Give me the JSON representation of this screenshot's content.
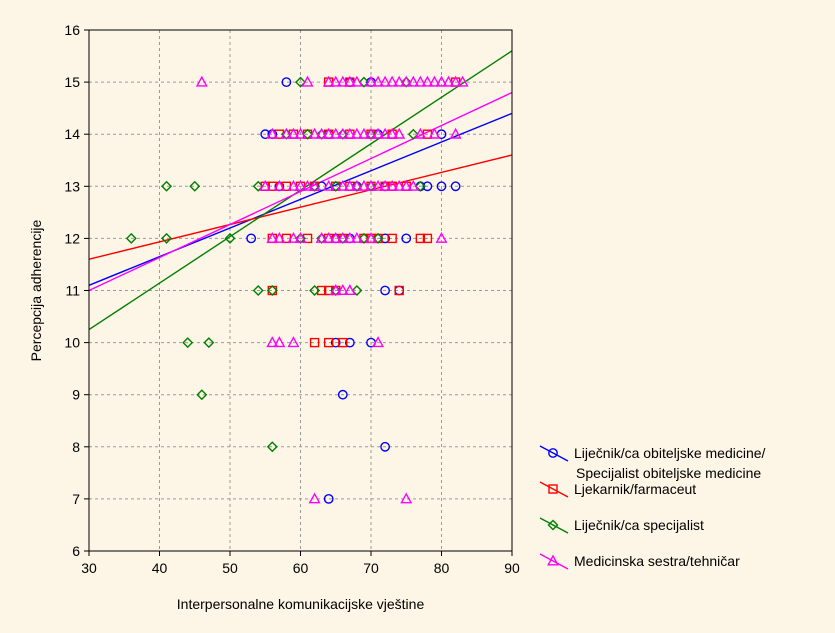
{
  "chart_data": {
    "type": "scatter",
    "title": "",
    "xlabel": "Interpersonalne komunikacijske vještine",
    "ylabel": "Percepcija adherencije",
    "xlim": [
      30,
      90
    ],
    "ylim": [
      6,
      16
    ],
    "xticks": [
      30,
      40,
      50,
      60,
      70,
      80,
      90
    ],
    "yticks": [
      6,
      7,
      8,
      9,
      10,
      11,
      12,
      13,
      14,
      15,
      16
    ],
    "grid": "dashed",
    "legend_position": "right",
    "series": [
      {
        "name": "Liječnik/ca obiteljske medicine/\nSpecijalist obiteljske medicine",
        "color": "#0000ff",
        "marker": "circle",
        "fit_line": [
          [
            30,
            11.1
          ],
          [
            90,
            14.4
          ]
        ],
        "points": [
          [
            58,
            15
          ],
          [
            67,
            15
          ],
          [
            70,
            15
          ],
          [
            55,
            14
          ],
          [
            56,
            14
          ],
          [
            64,
            14
          ],
          [
            71,
            14
          ],
          [
            80,
            14
          ],
          [
            57,
            13
          ],
          [
            63,
            13
          ],
          [
            68,
            13
          ],
          [
            72,
            13
          ],
          [
            77,
            13
          ],
          [
            78,
            13
          ],
          [
            80,
            13
          ],
          [
            82,
            13
          ],
          [
            53,
            12
          ],
          [
            65,
            12
          ],
          [
            67,
            12
          ],
          [
            72,
            12
          ],
          [
            75,
            12
          ],
          [
            72,
            11
          ],
          [
            74,
            11
          ],
          [
            65,
            10
          ],
          [
            67,
            10
          ],
          [
            70,
            10
          ],
          [
            66,
            9
          ],
          [
            72,
            8
          ],
          [
            64,
            7
          ]
        ]
      },
      {
        "name": "Ljekarnik/farmaceut",
        "color": "#ff0000",
        "marker": "square",
        "fit_line": [
          [
            30,
            11.6
          ],
          [
            90,
            13.6
          ]
        ],
        "points": [
          [
            64,
            15
          ],
          [
            67,
            15
          ],
          [
            82,
            15
          ],
          [
            57,
            14
          ],
          [
            59,
            14
          ],
          [
            61,
            14
          ],
          [
            64,
            14
          ],
          [
            67,
            14
          ],
          [
            70,
            14
          ],
          [
            73,
            14
          ],
          [
            78,
            14
          ],
          [
            55,
            13
          ],
          [
            56,
            13
          ],
          [
            58,
            13
          ],
          [
            60,
            13
          ],
          [
            62,
            13
          ],
          [
            65,
            13
          ],
          [
            67,
            13
          ],
          [
            70,
            13
          ],
          [
            72,
            13
          ],
          [
            73,
            13
          ],
          [
            75,
            13
          ],
          [
            56,
            12
          ],
          [
            58,
            12
          ],
          [
            61,
            12
          ],
          [
            64,
            12
          ],
          [
            66,
            12
          ],
          [
            69,
            12
          ],
          [
            70,
            12
          ],
          [
            71,
            12
          ],
          [
            73,
            12
          ],
          [
            77,
            12
          ],
          [
            78,
            12
          ],
          [
            56,
            11
          ],
          [
            63,
            11
          ],
          [
            64,
            11
          ],
          [
            65,
            11
          ],
          [
            74,
            11
          ],
          [
            62,
            10
          ],
          [
            64,
            10
          ],
          [
            66,
            10
          ]
        ]
      },
      {
        "name": "Liječnik/ca specijalist",
        "color": "#008000",
        "marker": "diamond",
        "fit_line": [
          [
            30,
            10.25
          ],
          [
            90,
            15.6
          ]
        ],
        "points": [
          [
            60,
            15
          ],
          [
            69,
            15
          ],
          [
            75,
            15
          ],
          [
            58,
            14
          ],
          [
            61,
            14
          ],
          [
            63,
            14
          ],
          [
            66,
            14
          ],
          [
            70,
            14
          ],
          [
            76,
            14
          ],
          [
            41,
            13
          ],
          [
            45,
            13
          ],
          [
            54,
            13
          ],
          [
            62,
            13
          ],
          [
            65,
            13
          ],
          [
            68,
            13
          ],
          [
            70,
            13
          ],
          [
            77,
            13
          ],
          [
            36,
            12
          ],
          [
            41,
            12
          ],
          [
            50,
            12
          ],
          [
            60,
            12
          ],
          [
            63,
            12
          ],
          [
            66,
            12
          ],
          [
            69,
            12
          ],
          [
            71,
            12
          ],
          [
            54,
            11
          ],
          [
            56,
            11
          ],
          [
            62,
            11
          ],
          [
            65,
            11
          ],
          [
            68,
            11
          ],
          [
            44,
            10
          ],
          [
            47,
            10
          ],
          [
            46,
            9
          ],
          [
            56,
            8
          ]
        ]
      },
      {
        "name": "Medicinska sestra/tehničar",
        "color": "#ff00ff",
        "marker": "triangle",
        "fit_line": [
          [
            30,
            11.0
          ],
          [
            90,
            14.8
          ]
        ],
        "points": [
          [
            46,
            15
          ],
          [
            61,
            15
          ],
          [
            64,
            15
          ],
          [
            65,
            15
          ],
          [
            66,
            15
          ],
          [
            67,
            15
          ],
          [
            68,
            15
          ],
          [
            70,
            15
          ],
          [
            71,
            15
          ],
          [
            72,
            15
          ],
          [
            73,
            15
          ],
          [
            74,
            15
          ],
          [
            75,
            15
          ],
          [
            76,
            15
          ],
          [
            77,
            15
          ],
          [
            78,
            15
          ],
          [
            79,
            15
          ],
          [
            80,
            15
          ],
          [
            81,
            15
          ],
          [
            82,
            15
          ],
          [
            83,
            15
          ],
          [
            56,
            14
          ],
          [
            58,
            14
          ],
          [
            59,
            14
          ],
          [
            60,
            14
          ],
          [
            62,
            14
          ],
          [
            63,
            14
          ],
          [
            64,
            14
          ],
          [
            65,
            14
          ],
          [
            66,
            14
          ],
          [
            67,
            14
          ],
          [
            68,
            14
          ],
          [
            69,
            14
          ],
          [
            70,
            14
          ],
          [
            71,
            14
          ],
          [
            72,
            14
          ],
          [
            73,
            14
          ],
          [
            74,
            14
          ],
          [
            77,
            14
          ],
          [
            79,
            14
          ],
          [
            82,
            14
          ],
          [
            55,
            13
          ],
          [
            57,
            13
          ],
          [
            59,
            13
          ],
          [
            60,
            13
          ],
          [
            61,
            13
          ],
          [
            62,
            13
          ],
          [
            64,
            13
          ],
          [
            66,
            13
          ],
          [
            67,
            13
          ],
          [
            68,
            13
          ],
          [
            69,
            13
          ],
          [
            70,
            13
          ],
          [
            71,
            13
          ],
          [
            72,
            13
          ],
          [
            73,
            13
          ],
          [
            74,
            13
          ],
          [
            75,
            13
          ],
          [
            76,
            13
          ],
          [
            56,
            12
          ],
          [
            57,
            12
          ],
          [
            59,
            12
          ],
          [
            60,
            12
          ],
          [
            63,
            12
          ],
          [
            64,
            12
          ],
          [
            65,
            12
          ],
          [
            66,
            12
          ],
          [
            67,
            12
          ],
          [
            68,
            12
          ],
          [
            70,
            12
          ],
          [
            80,
            12
          ],
          [
            65,
            11
          ],
          [
            66,
            11
          ],
          [
            67,
            11
          ],
          [
            56,
            10
          ],
          [
            57,
            10
          ],
          [
            59,
            10
          ],
          [
            71,
            10
          ],
          [
            62,
            7
          ],
          [
            75,
            7
          ]
        ]
      }
    ]
  }
}
